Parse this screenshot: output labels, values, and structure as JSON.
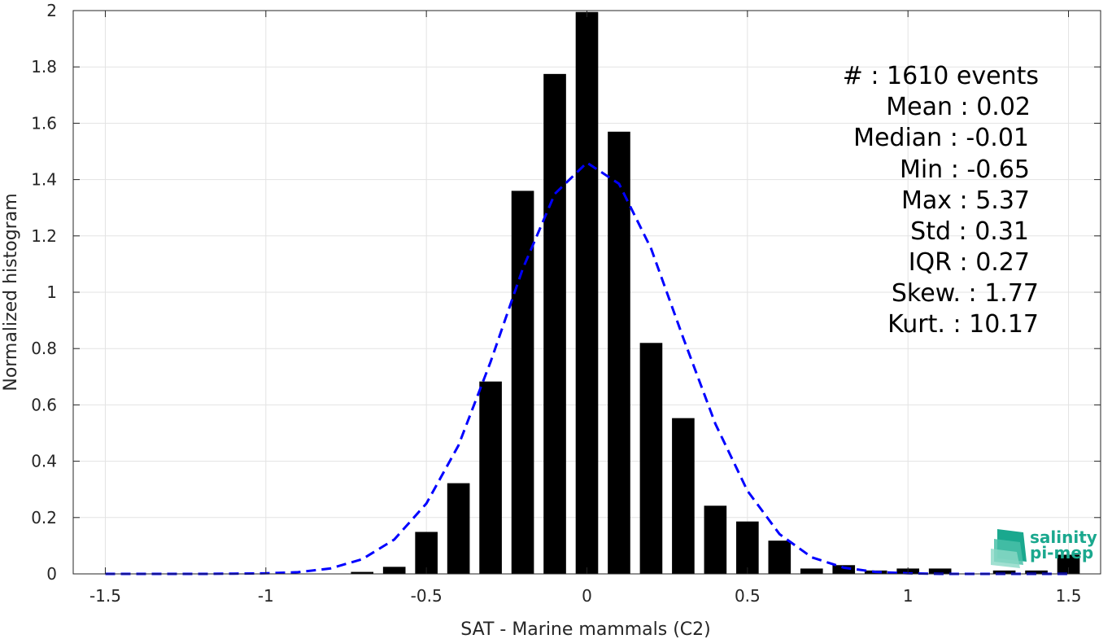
{
  "chart_data": {
    "type": "bar",
    "xlabel": "SAT - Marine mammals (C2)",
    "ylabel": "Normalized histogram",
    "xlim": [
      -1.6,
      1.6
    ],
    "ylim": [
      0,
      2
    ],
    "xticks": [
      -1.5,
      -1,
      -0.5,
      0,
      0.5,
      1,
      1.5
    ],
    "xtick_labels": [
      "-1.5",
      "-1",
      "-0.5",
      "0",
      "0.5",
      "1",
      "1.5"
    ],
    "yticks": [
      0,
      0.2,
      0.4,
      0.6,
      0.8,
      1,
      1.2,
      1.4,
      1.6,
      1.8,
      2
    ],
    "ytick_labels": [
      "0",
      "0.2",
      "0.4",
      "0.6",
      "0.8",
      "1",
      "1.2",
      "1.4",
      "1.6",
      "1.8",
      "2"
    ],
    "grid": true,
    "bar_color": "#000000",
    "curve_color": "#0000ff",
    "bars": {
      "x": [
        -0.7,
        -0.6,
        -0.5,
        -0.4,
        -0.3,
        -0.2,
        -0.1,
        0.0,
        0.1,
        0.2,
        0.3,
        0.4,
        0.5,
        0.6,
        0.7,
        0.8,
        0.9,
        1.0,
        1.1,
        1.3,
        1.4,
        1.5
      ],
      "values": [
        0.007,
        0.025,
        0.149,
        0.322,
        0.683,
        1.36,
        1.775,
        1.995,
        1.57,
        0.82,
        0.553,
        0.242,
        0.186,
        0.118,
        0.019,
        0.031,
        0.012,
        0.019,
        0.019,
        0.012,
        0.012,
        0.068
      ]
    },
    "fit_curve": {
      "style": "dashed",
      "x": [
        -1.5,
        -1.4,
        -1.3,
        -1.2,
        -1.1,
        -1.0,
        -0.9,
        -0.8,
        -0.7,
        -0.6,
        -0.5,
        -0.4,
        -0.3,
        -0.2,
        -0.1,
        0.0,
        0.1,
        0.2,
        0.3,
        0.4,
        0.5,
        0.6,
        0.7,
        0.8,
        0.9,
        1.0,
        1.1,
        1.2,
        1.3,
        1.4,
        1.5
      ],
      "y": [
        0.0,
        0.0,
        0.0,
        0.0,
        0.001,
        0.002,
        0.006,
        0.019,
        0.052,
        0.122,
        0.25,
        0.456,
        0.753,
        1.083,
        1.349,
        1.46,
        1.385,
        1.155,
        0.838,
        0.533,
        0.295,
        0.141,
        0.059,
        0.022,
        0.007,
        0.002,
        0.0,
        0.0,
        0.0,
        0.0,
        0.0
      ]
    }
  },
  "stats": {
    "count_label": "#  : 1610 events",
    "mean": "Mean : 0.02",
    "median": "Median : -0.01",
    "min": "Min : -0.65",
    "max": "Max : 5.37",
    "std": "Std : 0.31",
    "iqr": "IQR : 0.27",
    "skew": "Skew. : 1.77",
    "kurt": "Kurt. : 10.17"
  },
  "logo": {
    "line1": "salinity",
    "line2": "pi-mep",
    "color": "#1aa88e"
  }
}
